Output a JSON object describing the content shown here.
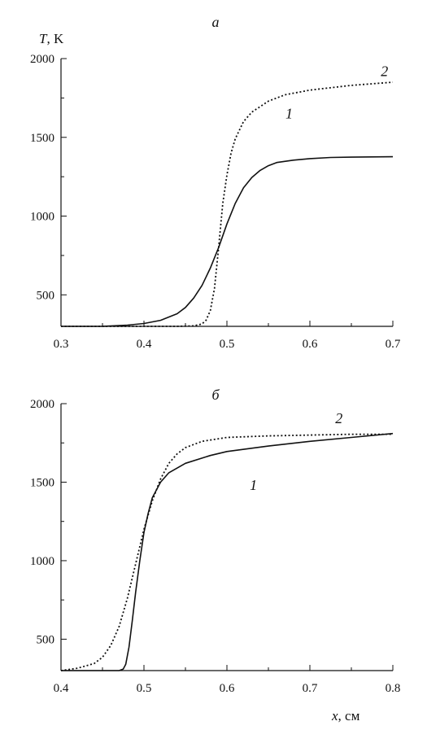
{
  "chart_data": [
    {
      "type": "line",
      "panel_label": "а",
      "ylabel_symbol": "T",
      "ylabel_unit": ", K",
      "xlabel_symbol": "",
      "xlabel_unit": "",
      "xlim": [
        0.3,
        0.7
      ],
      "ylim": [
        300,
        2000
      ],
      "xticks": [
        "0.3",
        "0.4",
        "0.5",
        "0.6",
        "0.7"
      ],
      "yticks": [
        "500",
        "1000",
        "1500",
        "2000"
      ],
      "xtick_values": [
        0.3,
        0.4,
        0.5,
        0.6,
        0.7
      ],
      "ytick_values": [
        500,
        1000,
        1500,
        2000
      ],
      "series": [
        {
          "name": "1",
          "style": "solid",
          "label_at": [
            0.575,
            1620
          ],
          "x": [
            0.3,
            0.35,
            0.38,
            0.4,
            0.42,
            0.44,
            0.45,
            0.46,
            0.47,
            0.48,
            0.49,
            0.5,
            0.51,
            0.52,
            0.53,
            0.54,
            0.55,
            0.56,
            0.58,
            0.6,
            0.625,
            0.65,
            0.7
          ],
          "y": [
            300,
            300,
            308,
            318,
            338,
            380,
            420,
            480,
            560,
            670,
            800,
            950,
            1080,
            1180,
            1245,
            1290,
            1320,
            1340,
            1355,
            1365,
            1372,
            1374,
            1377
          ]
        },
        {
          "name": "2",
          "style": "dotted",
          "label_at": [
            0.69,
            1890
          ],
          "x": [
            0.3,
            0.44,
            0.46,
            0.47,
            0.475,
            0.48,
            0.485,
            0.49,
            0.495,
            0.5,
            0.505,
            0.51,
            0.52,
            0.53,
            0.55,
            0.57,
            0.6,
            0.65,
            0.7
          ],
          "y": [
            300,
            300,
            303,
            315,
            340,
            400,
            540,
            800,
            1080,
            1260,
            1400,
            1490,
            1600,
            1660,
            1730,
            1770,
            1800,
            1830,
            1850
          ]
        }
      ]
    },
    {
      "type": "line",
      "panel_label": "б",
      "ylabel_symbol": "",
      "ylabel_unit": "",
      "xlabel_symbol": "x",
      "xlabel_unit": ", см",
      "xlim": [
        0.4,
        0.8
      ],
      "ylim": [
        300,
        2000
      ],
      "xticks": [
        "0.4",
        "0.5",
        "0.6",
        "0.7",
        "0.8"
      ],
      "yticks": [
        "500",
        "1000",
        "1500",
        "2000"
      ],
      "xtick_values": [
        0.4,
        0.5,
        0.6,
        0.7,
        0.8
      ],
      "ytick_values": [
        500,
        1000,
        1500,
        2000
      ],
      "series": [
        {
          "name": "1",
          "style": "solid",
          "label_at": [
            0.632,
            1450
          ],
          "x": [
            0.4,
            0.47,
            0.475,
            0.478,
            0.482,
            0.486,
            0.49,
            0.495,
            0.5,
            0.505,
            0.51,
            0.52,
            0.53,
            0.55,
            0.58,
            0.6,
            0.65,
            0.7,
            0.75,
            0.8
          ],
          "y": [
            300,
            300,
            310,
            340,
            450,
            620,
            800,
            1000,
            1180,
            1300,
            1400,
            1500,
            1560,
            1620,
            1670,
            1695,
            1730,
            1760,
            1785,
            1810
          ]
        },
        {
          "name": "2",
          "style": "dotted",
          "label_at": [
            0.735,
            1875
          ],
          "x": [
            0.4,
            0.42,
            0.44,
            0.45,
            0.46,
            0.47,
            0.48,
            0.49,
            0.5,
            0.51,
            0.52,
            0.53,
            0.54,
            0.55,
            0.57,
            0.6,
            0.65,
            0.7,
            0.75,
            0.8
          ],
          "y": [
            300,
            315,
            345,
            385,
            460,
            580,
            760,
            980,
            1200,
            1380,
            1520,
            1620,
            1680,
            1720,
            1760,
            1785,
            1795,
            1800,
            1805,
            1805
          ]
        }
      ]
    }
  ]
}
